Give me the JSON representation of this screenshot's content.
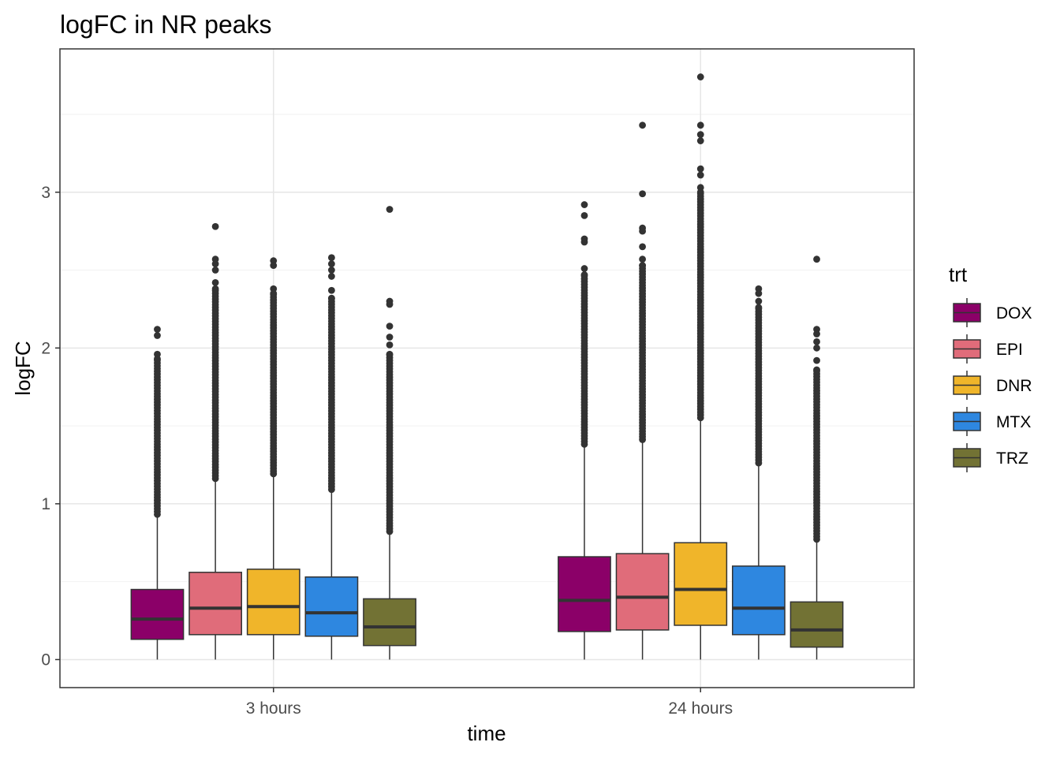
{
  "chart_data": {
    "type": "box",
    "title": "logFC in NR peaks",
    "xlabel": "time",
    "ylabel": "logFC",
    "ylim": [
      -0.18,
      3.92
    ],
    "y_ticks": [
      0,
      1,
      2,
      3
    ],
    "grid": true,
    "legend": {
      "title": "trt",
      "position": "right",
      "entries": [
        "DOX",
        "EPI",
        "DNR",
        "MTX",
        "TRZ"
      ]
    },
    "colors": {
      "DOX": "#8B0068",
      "EPI": "#E06C7A",
      "DNR": "#F0B52A",
      "MTX": "#2E87E0",
      "TRZ": "#727234"
    },
    "categories": [
      "3 hours",
      "24 hours"
    ],
    "series": [
      {
        "name": "DOX",
        "boxes": [
          {
            "min": 0,
            "q1": 0.13,
            "median": 0.26,
            "q3": 0.45,
            "max": 0.92,
            "outliers": [
              2.12,
              2.08,
              1.96,
              1.93
            ]
          },
          {
            "min": 0,
            "q1": 0.18,
            "median": 0.38,
            "q3": 0.66,
            "max": 1.37,
            "outliers": [
              2.92,
              2.85,
              2.7,
              2.68,
              2.51,
              2.47
            ]
          }
        ]
      },
      {
        "name": "EPI",
        "boxes": [
          {
            "min": 0,
            "q1": 0.16,
            "median": 0.33,
            "q3": 0.56,
            "max": 1.15,
            "outliers": [
              2.78,
              2.57,
              2.54,
              2.5,
              2.42,
              2.38
            ]
          },
          {
            "min": 0,
            "q1": 0.19,
            "median": 0.4,
            "q3": 0.68,
            "max": 1.4,
            "outliers": [
              3.43,
              2.99,
              2.77,
              2.75,
              2.65,
              2.57,
              2.53
            ]
          }
        ]
      },
      {
        "name": "DNR",
        "boxes": [
          {
            "min": 0,
            "q1": 0.16,
            "median": 0.34,
            "q3": 0.58,
            "max": 1.18,
            "outliers": [
              2.56,
              2.53,
              2.38,
              2.35
            ]
          },
          {
            "min": 0,
            "q1": 0.22,
            "median": 0.45,
            "q3": 0.75,
            "max": 1.54,
            "outliers": [
              3.74,
              3.43,
              3.37,
              3.33,
              3.15,
              3.11,
              3.03,
              3.0
            ]
          }
        ]
      },
      {
        "name": "MTX",
        "boxes": [
          {
            "min": 0,
            "q1": 0.15,
            "median": 0.3,
            "q3": 0.53,
            "max": 1.08,
            "outliers": [
              2.58,
              2.54,
              2.5,
              2.46,
              2.37,
              2.32
            ]
          },
          {
            "min": 0,
            "q1": 0.16,
            "median": 0.33,
            "q3": 0.6,
            "max": 1.25,
            "outliers": [
              2.38,
              2.35,
              2.3,
              2.26
            ]
          }
        ]
      },
      {
        "name": "TRZ",
        "boxes": [
          {
            "min": 0,
            "q1": 0.09,
            "median": 0.21,
            "q3": 0.39,
            "max": 0.81,
            "outliers": [
              2.89,
              2.3,
              2.28,
              2.14,
              2.07,
              2.02,
              1.96
            ]
          },
          {
            "min": 0,
            "q1": 0.08,
            "median": 0.19,
            "q3": 0.37,
            "max": 0.76,
            "outliers": [
              2.57,
              2.12,
              2.09,
              2.04,
              2.0,
              1.92,
              1.86
            ]
          }
        ]
      }
    ]
  }
}
